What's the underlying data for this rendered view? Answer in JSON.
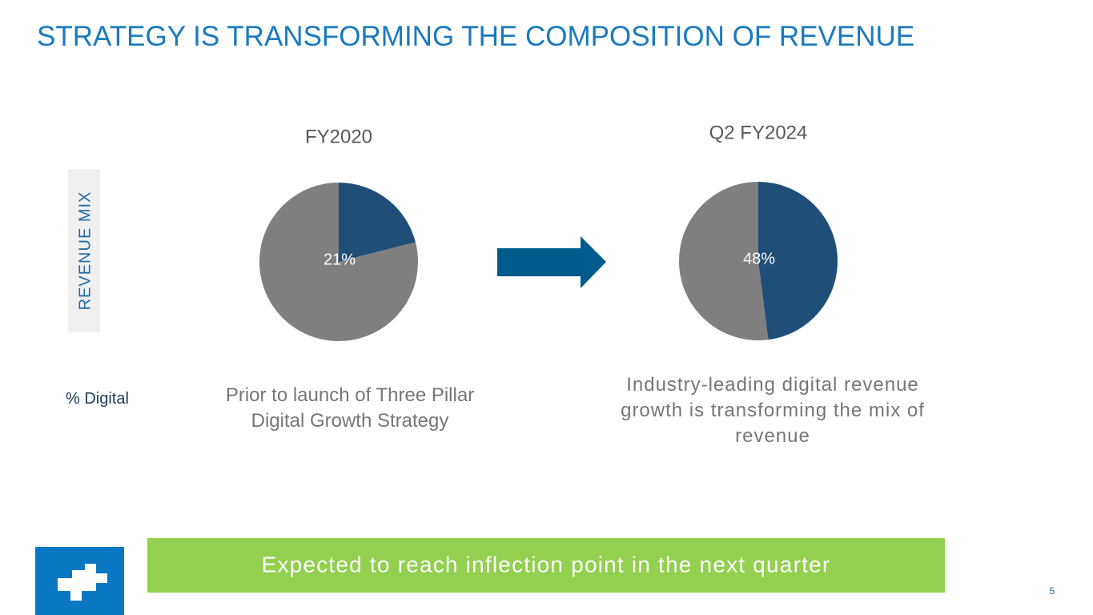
{
  "title": "STRATEGY IS TRANSFORMING THE COMPOSITION OF REVENUE",
  "side_label": "REVENUE MIX",
  "row_label": "% Digital",
  "chart_data": [
    {
      "type": "pie",
      "title": "FY2020",
      "values": [
        21,
        79
      ],
      "value_labels": [
        "21%",
        null
      ],
      "colors": [
        "#1f4e79",
        "#7f7f7f"
      ],
      "caption": "Prior to launch of Three Pillar Digital Growth Strategy"
    },
    {
      "type": "pie",
      "title": "Q2 FY2024",
      "values": [
        48,
        52
      ],
      "value_labels": [
        "48%",
        null
      ],
      "colors": [
        "#1f4e79",
        "#7f7f7f"
      ],
      "caption": "Industry-leading digital revenue growth is transforming the mix of revenue"
    }
  ],
  "banner": "Expected to reach inflection point in the next quarter",
  "page_number": 5
}
